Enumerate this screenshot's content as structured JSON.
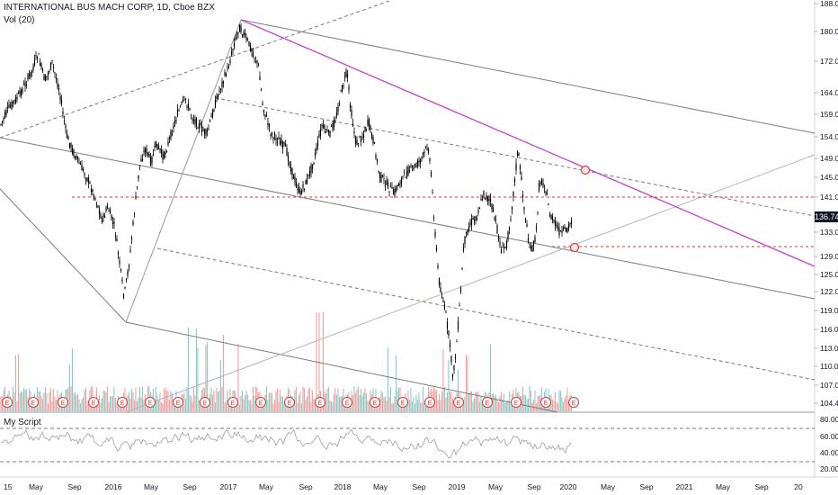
{
  "header": {
    "title": "INTERNATIONAL BUS MACH CORP, 1D, Cboe BZX",
    "volume_label": "Vol (20)",
    "indicator_label": "My Script"
  },
  "price_axis": {
    "ticks": [
      "188.00",
      "180.00",
      "172.00",
      "164.00",
      "159.00",
      "154.00",
      "149.00",
      "145.00",
      "141.00",
      "133.00",
      "129.00",
      "125.00",
      "122.00",
      "119.00",
      "116.00",
      "113.00",
      "110.00",
      "107.00",
      "104.40"
    ],
    "last_price": "136.74"
  },
  "osc_axis": {
    "ticks": [
      "80.00",
      "60.00",
      "40.00",
      "20.00"
    ]
  },
  "time_axis": {
    "labels": [
      "15",
      "May",
      "Sep",
      "2016",
      "May",
      "Sep",
      "2017",
      "May",
      "Sep",
      "2018",
      "May",
      "Sep",
      "2019",
      "May",
      "Sep",
      "2020",
      "May",
      "Sep",
      "2021",
      "May",
      "Sep",
      "20"
    ]
  },
  "earnings_marker": "E",
  "colors": {
    "trendline": "#787b86",
    "accent_line": "#c940d1",
    "support_line": "#e53935",
    "candle": "#000000",
    "vol_up": "#26a69a",
    "vol_down": "#ef5350",
    "osc_line": "#9e9e9e",
    "osc_high": "#e53935",
    "osc_low": "#43a047"
  }
}
